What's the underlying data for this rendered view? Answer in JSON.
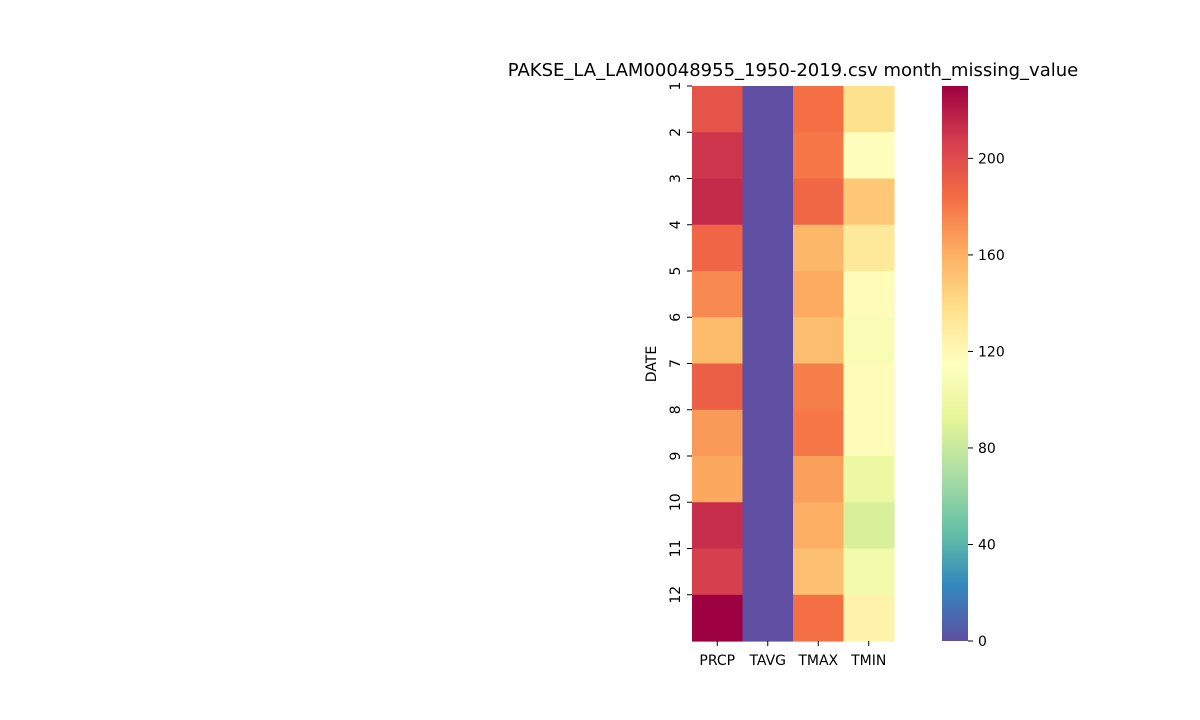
{
  "chart_data": {
    "type": "heatmap",
    "title": "PAKSE_LA_LAM00048955_1950-2019.csv month_missing_value",
    "xlabel": "",
    "ylabel": "DATE",
    "columns": [
      "PRCP",
      "TAVG",
      "TMAX",
      "TMIN"
    ],
    "rows": [
      "1",
      "2",
      "3",
      "4",
      "5",
      "6",
      "7",
      "8",
      "9",
      "10",
      "11",
      "12"
    ],
    "values": [
      [
        196,
        0,
        183,
        137
      ],
      [
        210,
        0,
        180,
        116
      ],
      [
        214,
        0,
        187,
        149
      ],
      [
        188,
        0,
        157,
        132
      ],
      [
        174,
        0,
        162,
        118
      ],
      [
        155,
        0,
        154,
        109
      ],
      [
        191,
        0,
        178,
        118
      ],
      [
        168,
        0,
        180,
        118
      ],
      [
        163,
        0,
        166,
        98
      ],
      [
        213,
        0,
        160,
        87
      ],
      [
        206,
        0,
        153,
        104
      ],
      [
        230,
        0,
        183,
        124
      ]
    ],
    "colorbar": {
      "colormap": "Spectral_r",
      "min": 0,
      "max": 230,
      "ticks": [
        0,
        40,
        80,
        120,
        160,
        200
      ]
    },
    "grid": false,
    "legend": "colorbar-right"
  }
}
